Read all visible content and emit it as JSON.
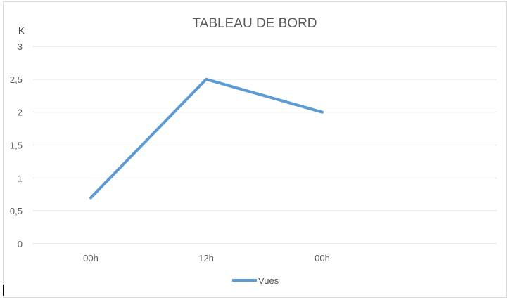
{
  "chart_data": {
    "type": "line",
    "title": "TABLEAU DE BORD",
    "y_unit_label": "K",
    "categories": [
      "00h",
      "12h",
      "00h"
    ],
    "series": [
      {
        "name": "Vues",
        "values": [
          0.7,
          2.5,
          2.0
        ],
        "color": "#5b9bd5"
      }
    ],
    "ylim": [
      0,
      3
    ],
    "y_ticks": [
      "0",
      "0,5",
      "1",
      "1,5",
      "2",
      "2,5",
      "3"
    ],
    "y_tick_values": [
      0,
      0.5,
      1,
      1.5,
      2,
      2.5,
      3
    ],
    "grid": true,
    "legend_position": "bottom"
  }
}
